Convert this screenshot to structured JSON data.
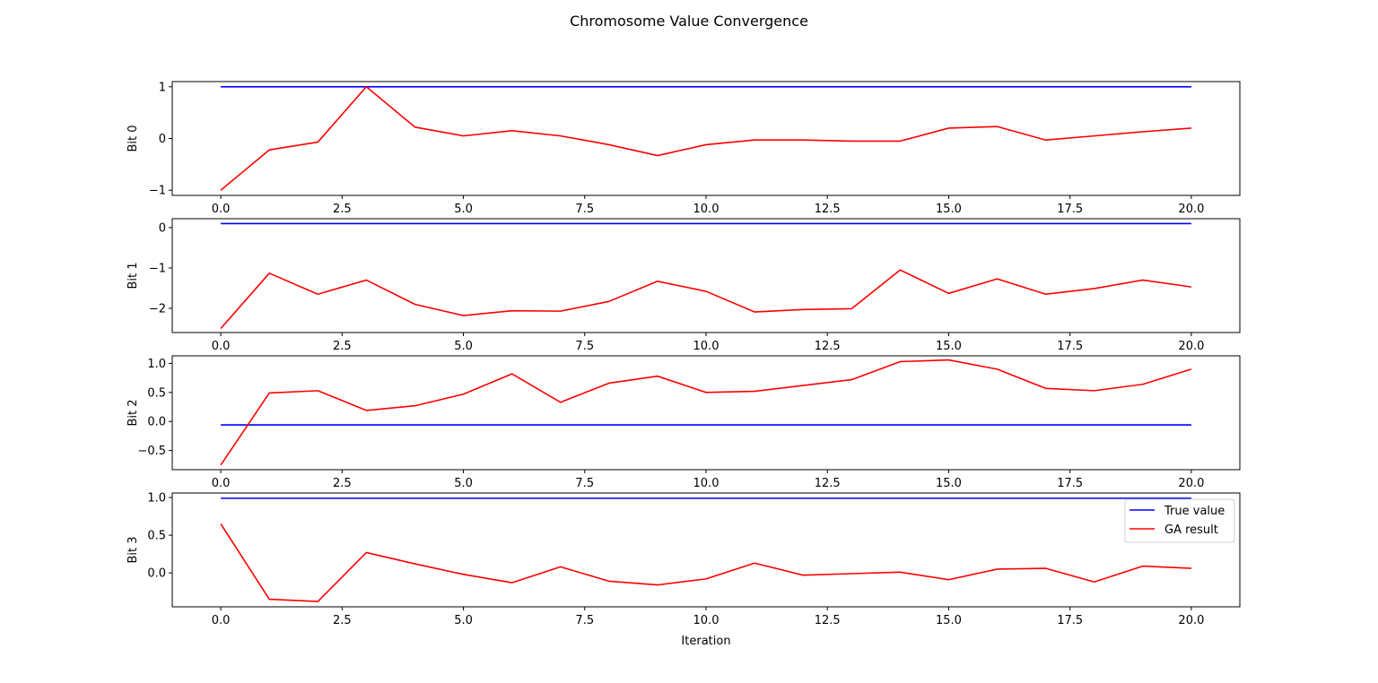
{
  "chart_data": {
    "type": "line",
    "title": "Chromosome Value Convergence",
    "xlabel": "Iteration",
    "x": [
      0,
      1,
      2,
      3,
      4,
      5,
      6,
      7,
      8,
      9,
      10,
      11,
      12,
      13,
      14,
      15,
      16,
      17,
      18,
      19,
      20
    ],
    "xlim": [
      -1,
      21
    ],
    "xticks": [
      0.0,
      2.5,
      5.0,
      7.5,
      10.0,
      12.5,
      15.0,
      17.5,
      20.0
    ],
    "xtick_labels": [
      "0.0",
      "2.5",
      "5.0",
      "7.5",
      "10.0",
      "12.5",
      "15.0",
      "17.5",
      "20.0"
    ],
    "legend": {
      "placement": "upper-right of bottom panel",
      "entries": [
        {
          "label": "True value",
          "color": "#0000ff"
        },
        {
          "label": "GA result",
          "color": "#ff0000"
        }
      ]
    },
    "colors": {
      "true_value": "#0000ff",
      "ga_result": "#ff0000"
    },
    "panels": [
      {
        "ylabel": "Bit 0",
        "ylim": [
          -1.1,
          1.1
        ],
        "yticks": [
          -1,
          0,
          1
        ],
        "ytick_labels": [
          "−1",
          "0",
          "1"
        ],
        "true_value": 1.0,
        "ga_result": [
          -1.0,
          -0.22,
          -0.07,
          1.0,
          0.22,
          0.05,
          0.15,
          0.05,
          -0.12,
          -0.33,
          -0.12,
          -0.03,
          -0.03,
          -0.05,
          -0.05,
          0.2,
          0.23,
          -0.03,
          0.05,
          0.13,
          0.2
        ]
      },
      {
        "ylabel": "Bit 1",
        "ylim": [
          -2.6,
          0.22
        ],
        "yticks": [
          -2,
          -1,
          0
        ],
        "ytick_labels": [
          "−2",
          "−1",
          "0"
        ],
        "true_value": 0.1,
        "ga_result": [
          -2.5,
          -1.13,
          -1.65,
          -1.3,
          -1.9,
          -2.18,
          -2.06,
          -2.07,
          -1.83,
          -1.33,
          -1.58,
          -2.09,
          -2.03,
          -2.01,
          -1.05,
          -1.63,
          -1.27,
          -1.65,
          -1.51,
          -1.3,
          -1.47
        ]
      },
      {
        "ylabel": "Bit 2",
        "ylim": [
          -0.83,
          1.13
        ],
        "yticks": [
          -0.5,
          0.0,
          0.5,
          1.0
        ],
        "ytick_labels": [
          "−0.5",
          "0.0",
          "0.5",
          "1.0"
        ],
        "true_value": -0.06,
        "ga_result": [
          -0.75,
          0.49,
          0.53,
          0.19,
          0.27,
          0.47,
          0.82,
          0.33,
          0.66,
          0.78,
          0.5,
          0.52,
          0.62,
          0.72,
          1.03,
          1.06,
          0.9,
          0.57,
          0.53,
          0.64,
          0.9
        ]
      },
      {
        "ylabel": "Bit 3",
        "ylim": [
          -0.45,
          1.06
        ],
        "yticks": [
          0.0,
          0.5,
          1.0
        ],
        "ytick_labels": [
          "0.0",
          "0.5",
          "1.0"
        ],
        "true_value": 0.99,
        "ga_result": [
          0.65,
          -0.35,
          -0.38,
          0.27,
          0.12,
          -0.02,
          -0.13,
          0.08,
          -0.11,
          -0.16,
          -0.08,
          0.13,
          -0.03,
          -0.01,
          0.01,
          -0.09,
          0.05,
          0.06,
          -0.12,
          0.09,
          0.06
        ]
      }
    ]
  }
}
